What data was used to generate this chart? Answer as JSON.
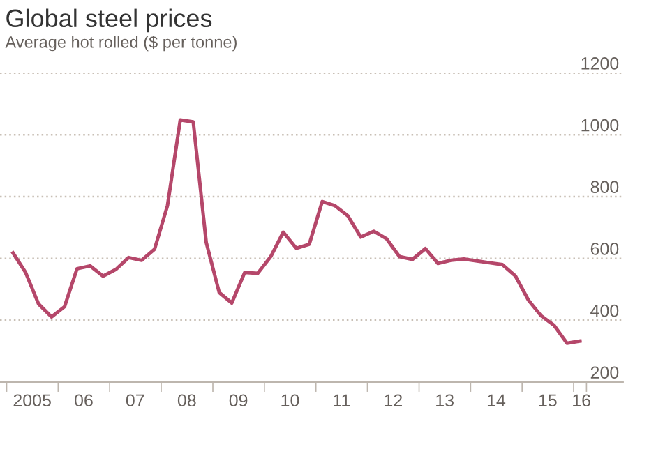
{
  "chart_data": {
    "type": "line",
    "title": "Global steel prices",
    "subtitle": "Average hot rolled ($ per tonne)",
    "x": [
      "2005-02-15",
      "2005-05-15",
      "2005-08-15",
      "2005-11-15",
      "2006-02-15",
      "2006-05-15",
      "2006-08-15",
      "2006-11-15",
      "2007-02-15",
      "2007-05-15",
      "2007-08-15",
      "2007-11-15",
      "2008-02-15",
      "2008-05-15",
      "2008-08-15",
      "2008-11-15",
      "2009-02-15",
      "2009-05-15",
      "2009-08-15",
      "2009-11-15",
      "2010-02-15",
      "2010-05-15",
      "2010-08-15",
      "2010-11-15",
      "2011-02-15",
      "2011-05-15",
      "2011-08-15",
      "2011-11-15",
      "2012-02-15",
      "2012-05-15",
      "2012-08-15",
      "2012-11-15",
      "2013-02-15",
      "2013-05-15",
      "2013-08-15",
      "2013-11-15",
      "2014-02-15",
      "2014-05-15",
      "2014-08-15",
      "2014-11-15",
      "2015-02-15",
      "2015-05-15",
      "2015-08-15",
      "2015-11-15",
      "2016-02-15"
    ],
    "series": [
      {
        "color": "#b5476a",
        "values": [
          618,
          555,
          453,
          411,
          444,
          567,
          576,
          543,
          565,
          603,
          594,
          630,
          772,
          1048,
          1042,
          652,
          490,
          456,
          555,
          552,
          606,
          685,
          633,
          646,
          784,
          771,
          738,
          669,
          688,
          664,
          606,
          597,
          632,
          584,
          594,
          598,
          592,
          586,
          580,
          543,
          465,
          415,
          384,
          326,
          333
        ]
      }
    ],
    "xlim": [
      "2004-11-15",
      "2016-12-16"
    ],
    "ylim": [
      200,
      1200
    ],
    "yticks": [
      200,
      400,
      600,
      800,
      1000,
      1200
    ],
    "xticks": [
      {
        "value": "2005-01-01",
        "label": null
      },
      {
        "value": "2006-01-01",
        "label": null
      },
      {
        "value": "2007-01-01",
        "label": null
      },
      {
        "value": "2008-01-01",
        "label": null
      },
      {
        "value": "2009-01-01",
        "label": null
      },
      {
        "value": "2010-01-01",
        "label": null
      },
      {
        "value": "2011-01-01",
        "label": null
      },
      {
        "value": "2012-01-01",
        "label": null
      },
      {
        "value": "2013-01-01",
        "label": null
      },
      {
        "value": "2014-01-01",
        "label": null
      },
      {
        "value": "2015-01-01",
        "label": null
      },
      {
        "value": "2016-01-01",
        "label": null
      },
      {
        "value": "2016-04-01",
        "label": null
      },
      {
        "value": "2005-07-01",
        "label": "2005"
      },
      {
        "value": "2006-07-01",
        "label": "06"
      },
      {
        "value": "2007-07-01",
        "label": "07"
      },
      {
        "value": "2008-07-01",
        "label": "08"
      },
      {
        "value": "2009-07-01",
        "label": "09"
      },
      {
        "value": "2010-07-01",
        "label": "10"
      },
      {
        "value": "2011-07-01",
        "label": "11"
      },
      {
        "value": "2012-07-01",
        "label": "12"
      },
      {
        "value": "2013-07-01",
        "label": "13"
      },
      {
        "value": "2014-07-01",
        "label": "14"
      },
      {
        "value": "2015-07-01",
        "label": "15"
      },
      {
        "value": "2016-02-25",
        "label": "16"
      }
    ],
    "grid": "y",
    "legend": false,
    "marker": "none",
    "line_style": "solid"
  }
}
